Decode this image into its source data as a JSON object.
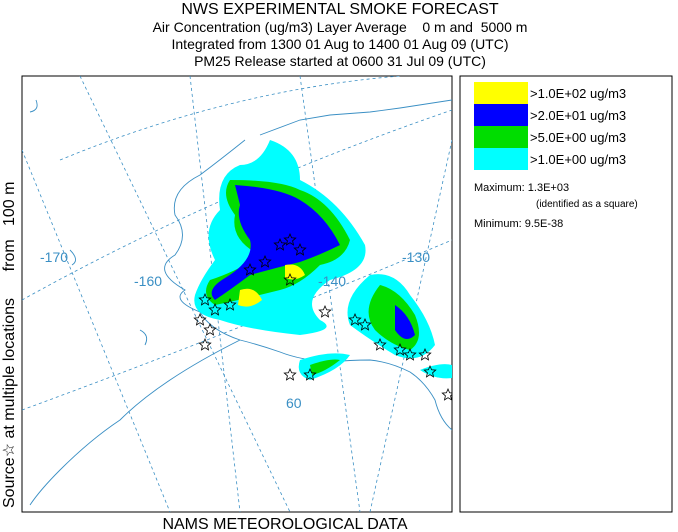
{
  "header": {
    "title": "NWS EXPERIMENTAL SMOKE FORECAST",
    "lines": [
      "Air Concentration (ug/m3) Layer Average    0 m and  5000 m",
      "Integrated from 1300 01 Aug to 1400 01 Aug 09 (UTC)",
      "PM25 Release started at 0600 31 Jul 09 (UTC)"
    ]
  },
  "side_label": "Source☆ at multiple locations      from   100 m",
  "map": {
    "grid_labels": [
      "-170",
      "-160",
      "-140",
      "-130",
      "60"
    ]
  },
  "legend": {
    "items": [
      {
        "label": ">1.0E+02 ug/m3",
        "color": "#ffff00"
      },
      {
        "label": ">2.0E+01 ug/m3",
        "color": "#0000ff"
      },
      {
        "label": ">5.0E+00 ug/m3",
        "color": "#00dd00"
      },
      {
        "label": ">1.0E+00 ug/m3",
        "color": "#00ffff"
      }
    ],
    "maximum": "Maximum: 1.3E+03",
    "maximum_note": "(identified as a square)",
    "minimum": "Minimum: 9.5E-38"
  },
  "footer": "NAMS METEOROLOGICAL DATA"
}
